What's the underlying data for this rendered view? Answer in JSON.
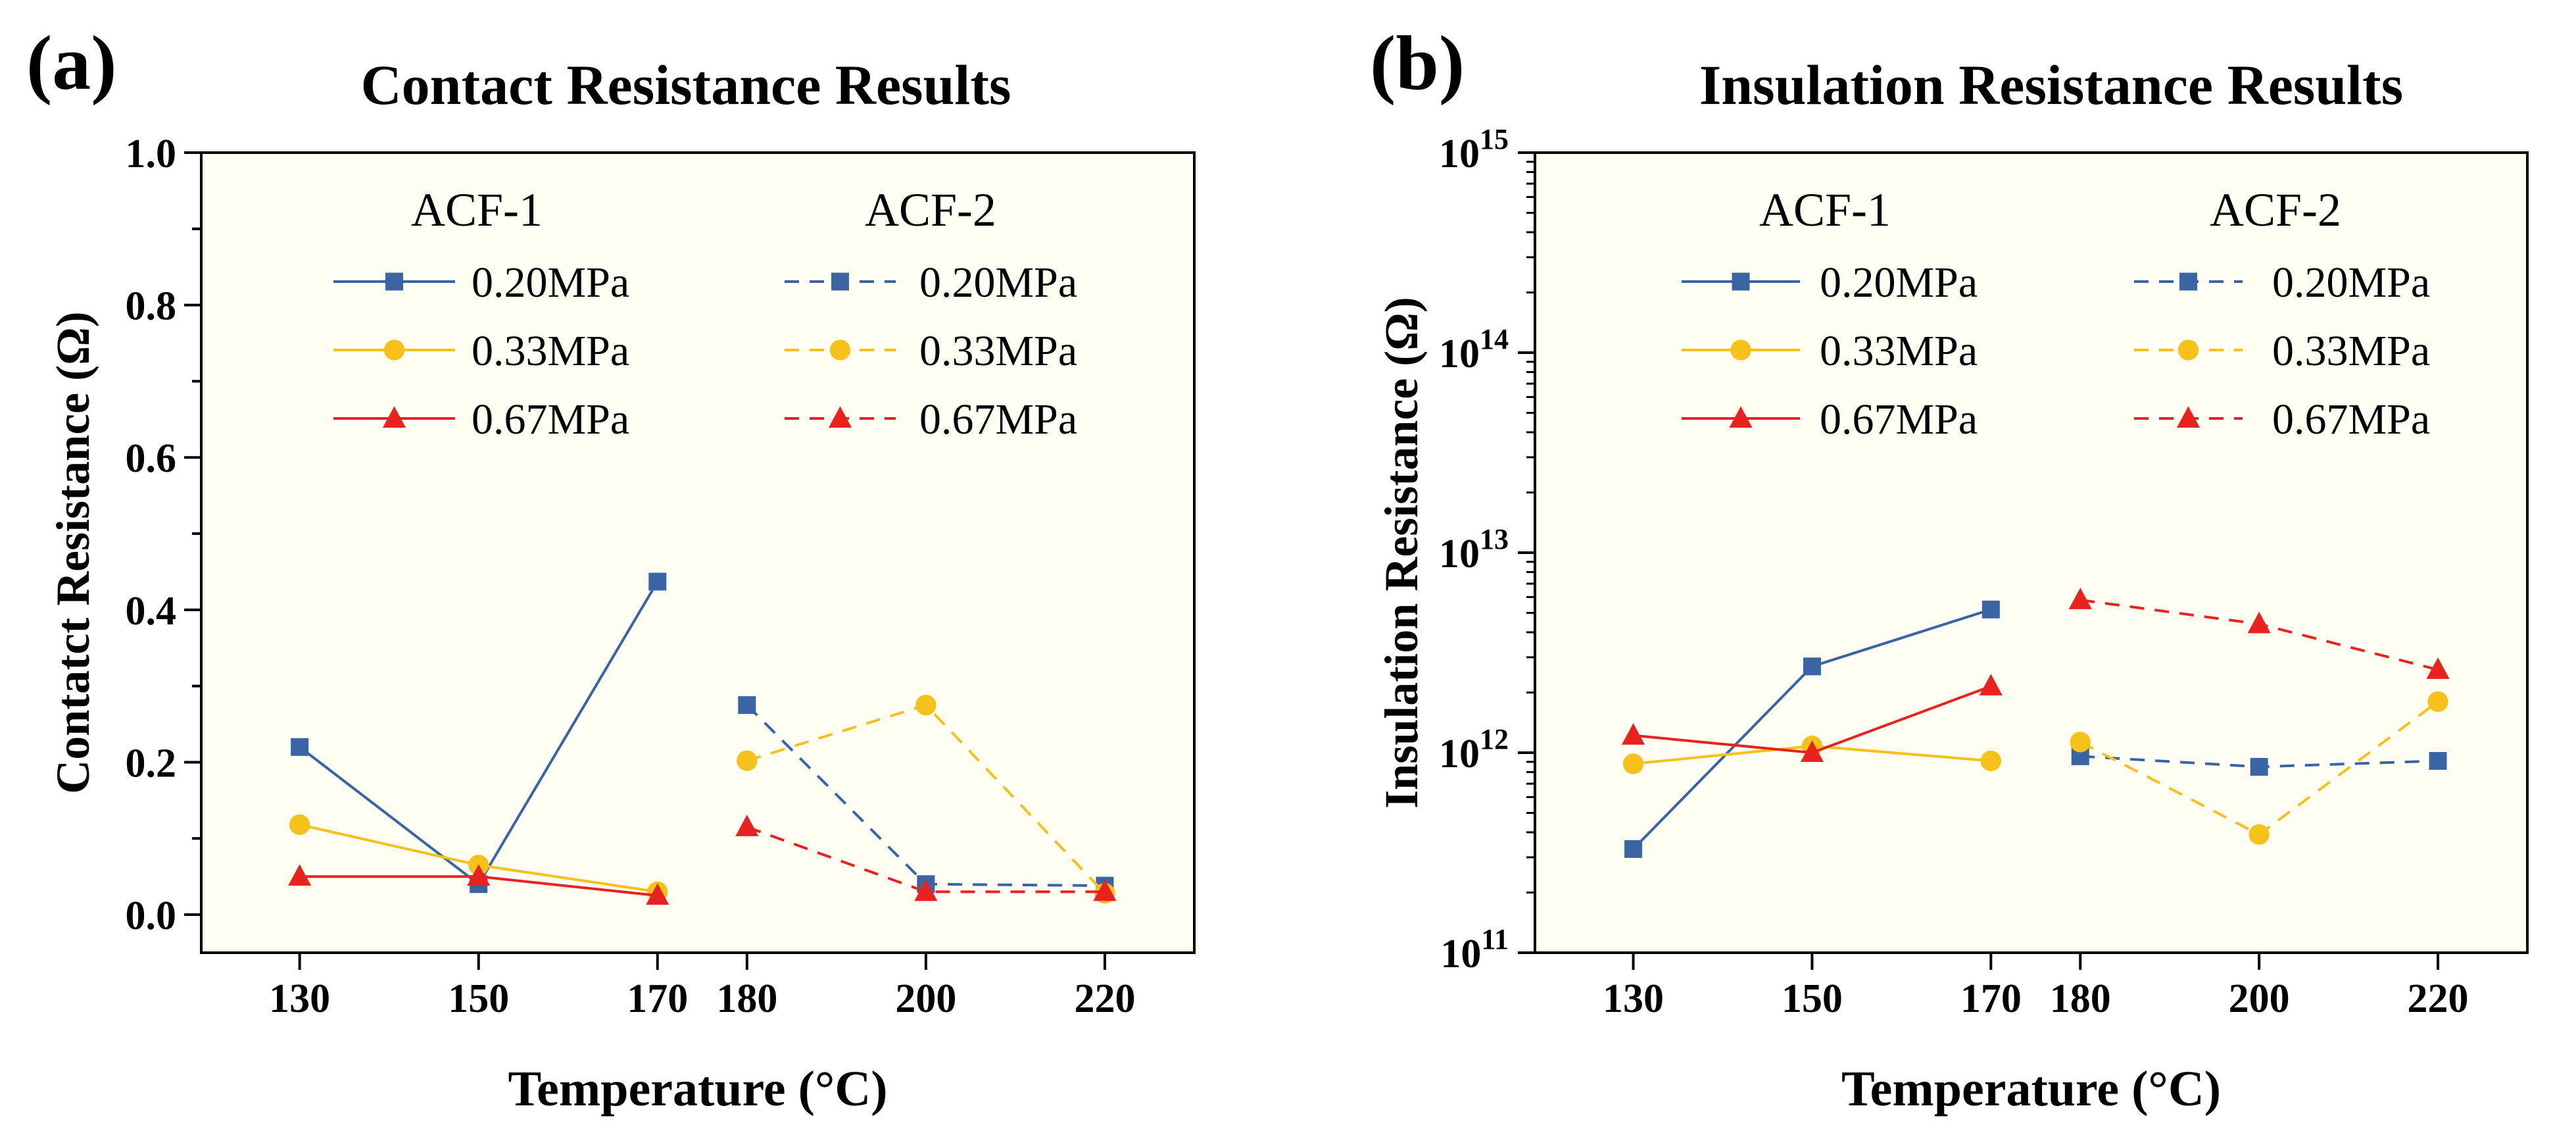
{
  "colors": {
    "blue": "#3a64a4",
    "yellow": "#f5c11a",
    "red": "#e8231f",
    "plot_bg": "#fffef2",
    "axis": "#000000"
  },
  "chart_data": [
    {
      "panel_label": "(a)",
      "type": "line",
      "title": "Contact Resistance Results",
      "xlabel": "Temperature (°C)",
      "ylabel": "Contatct Resistance (Ω)",
      "yscale": "linear",
      "ylim": [
        -0.05,
        1.0
      ],
      "yticks": [
        0.0,
        0.2,
        0.4,
        0.6,
        0.8,
        1.0
      ],
      "ytick_labels": [
        "0.0",
        "0.2",
        "0.4",
        "0.6",
        "0.8",
        "1.0"
      ],
      "x_positions": [
        0,
        1,
        2,
        2.5,
        3.5,
        4.5
      ],
      "xlim": [
        -0.55,
        5.0
      ],
      "xtick_labels": [
        "130",
        "150",
        "170",
        "180",
        "200",
        "220"
      ],
      "groups": [
        {
          "name": "ACF-1",
          "x_index": [
            0,
            1,
            2
          ],
          "dash": "solid"
        },
        {
          "name": "ACF-2",
          "x_index": [
            3,
            4,
            5
          ],
          "dash": "dashed"
        }
      ],
      "series": [
        {
          "name": "0.20MPa",
          "group": "ACF-1",
          "color_key": "blue",
          "marker": "square",
          "values": [
            0.22,
            0.04,
            0.437
          ]
        },
        {
          "name": "0.33MPa",
          "group": "ACF-1",
          "color_key": "yellow",
          "marker": "circle",
          "values": [
            0.118,
            0.065,
            0.03
          ]
        },
        {
          "name": "0.67MPa",
          "group": "ACF-1",
          "color_key": "red",
          "marker": "triangle",
          "values": [
            0.05,
            0.05,
            0.025
          ]
        },
        {
          "name": "0.20MPa",
          "group": "ACF-2",
          "color_key": "blue",
          "marker": "square",
          "values": [
            0.275,
            0.04,
            0.038
          ]
        },
        {
          "name": "0.33MPa",
          "group": "ACF-2",
          "color_key": "yellow",
          "marker": "circle",
          "values": [
            0.202,
            0.275,
            0.028
          ]
        },
        {
          "name": "0.67MPa",
          "group": "ACF-2",
          "color_key": "red",
          "marker": "triangle",
          "values": [
            0.115,
            0.03,
            0.03
          ]
        }
      ],
      "legend": {
        "placement": "top",
        "headers": [
          "ACF-1",
          "ACF-2"
        ]
      }
    },
    {
      "panel_label": "(b)",
      "type": "line",
      "title": "Insulation Resistance Results",
      "xlabel": "Temperature (°C)",
      "ylabel": "Insulation Resistance (Ω)",
      "yscale": "log",
      "ylim": [
        100000000000.0,
        1000000000000000.0
      ],
      "yticks": [
        100000000000.0,
        1000000000000.0,
        10000000000000.0,
        100000000000000.0,
        1000000000000000.0
      ],
      "ytick_labels": [
        {
          "base": "10",
          "exp": "11"
        },
        {
          "base": "10",
          "exp": "12"
        },
        {
          "base": "10",
          "exp": "13"
        },
        {
          "base": "10",
          "exp": "14"
        },
        {
          "base": "10",
          "exp": "15"
        }
      ],
      "x_positions": [
        0,
        1,
        2,
        2.5,
        3.5,
        4.5
      ],
      "xlim": [
        -0.55,
        5.0
      ],
      "xtick_labels": [
        "130",
        "150",
        "170",
        "180",
        "200",
        "220"
      ],
      "groups": [
        {
          "name": "ACF-1",
          "x_index": [
            0,
            1,
            2
          ],
          "dash": "solid"
        },
        {
          "name": "ACF-2",
          "x_index": [
            3,
            4,
            5
          ],
          "dash": "dashed"
        }
      ],
      "series": [
        {
          "name": "0.20MPa",
          "group": "ACF-1",
          "color_key": "blue",
          "marker": "square",
          "values": [
            330000000000.0,
            2700000000000.0,
            5200000000000.0
          ]
        },
        {
          "name": "0.33MPa",
          "group": "ACF-1",
          "color_key": "yellow",
          "marker": "circle",
          "values": [
            880000000000.0,
            1080000000000.0,
            910000000000.0
          ]
        },
        {
          "name": "0.67MPa",
          "group": "ACF-1",
          "color_key": "red",
          "marker": "triangle",
          "values": [
            1220000000000.0,
            1000000000000.0,
            2150000000000.0
          ]
        },
        {
          "name": "0.20MPa",
          "group": "ACF-2",
          "color_key": "blue",
          "marker": "square",
          "values": [
            960000000000.0,
            850000000000.0,
            910000000000.0
          ]
        },
        {
          "name": "0.33MPa",
          "group": "ACF-2",
          "color_key": "yellow",
          "marker": "circle",
          "values": [
            1130000000000.0,
            390000000000.0,
            1800000000000.0
          ]
        },
        {
          "name": "0.67MPa",
          "group": "ACF-2",
          "color_key": "red",
          "marker": "triangle",
          "values": [
            5800000000000.0,
            4400000000000.0,
            2600000000000.0
          ]
        }
      ],
      "legend": {
        "placement": "top",
        "headers": [
          "ACF-1",
          "ACF-2"
        ]
      }
    }
  ]
}
